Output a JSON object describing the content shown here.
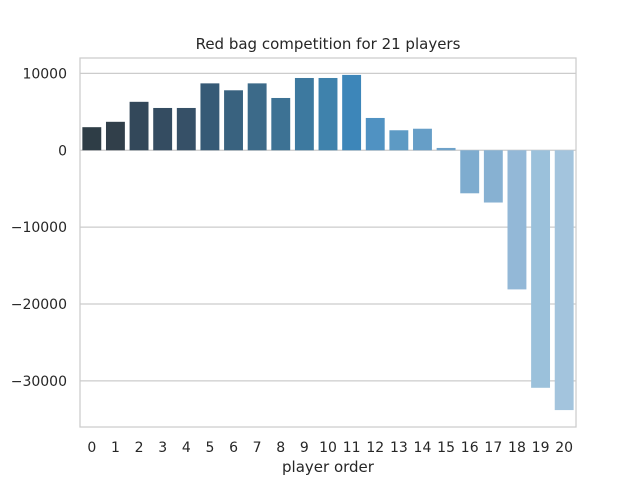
{
  "chart_data": {
    "type": "bar",
    "title": "Red bag competition for 21 players",
    "xlabel": "player order",
    "ylabel": "",
    "categories": [
      "0",
      "1",
      "2",
      "3",
      "4",
      "5",
      "6",
      "7",
      "8",
      "9",
      "10",
      "11",
      "12",
      "13",
      "14",
      "15",
      "16",
      "17",
      "18",
      "19",
      "20"
    ],
    "values": [
      3000,
      3700,
      6300,
      5500,
      5500,
      8700,
      7800,
      8700,
      6800,
      9400,
      9400,
      9800,
      4200,
      2600,
      2800,
      300,
      -5600,
      -6800,
      -18100,
      -30900,
      -33800
    ],
    "ylim": [
      -36000,
      12000
    ],
    "yticks": [
      10000,
      0,
      -10000,
      -20000,
      -30000
    ],
    "ytick_labels": [
      "10000",
      "0",
      "−10000",
      "−20000",
      "−30000"
    ],
    "grid": true,
    "colors": [
      "#2e3d46",
      "#313f4a",
      "#33485a",
      "#344c61",
      "#365067",
      "#365a76",
      "#39627f",
      "#3c6a89",
      "#3d7294",
      "#3d799f",
      "#3f82ac",
      "#3d86b9",
      "#5092c2",
      "#5d9ac4",
      "#669ec7",
      "#6fa2c9",
      "#7eaccf",
      "#87b1d2",
      "#93b8d7",
      "#9bc1db",
      "#a3c4dd"
    ]
  }
}
